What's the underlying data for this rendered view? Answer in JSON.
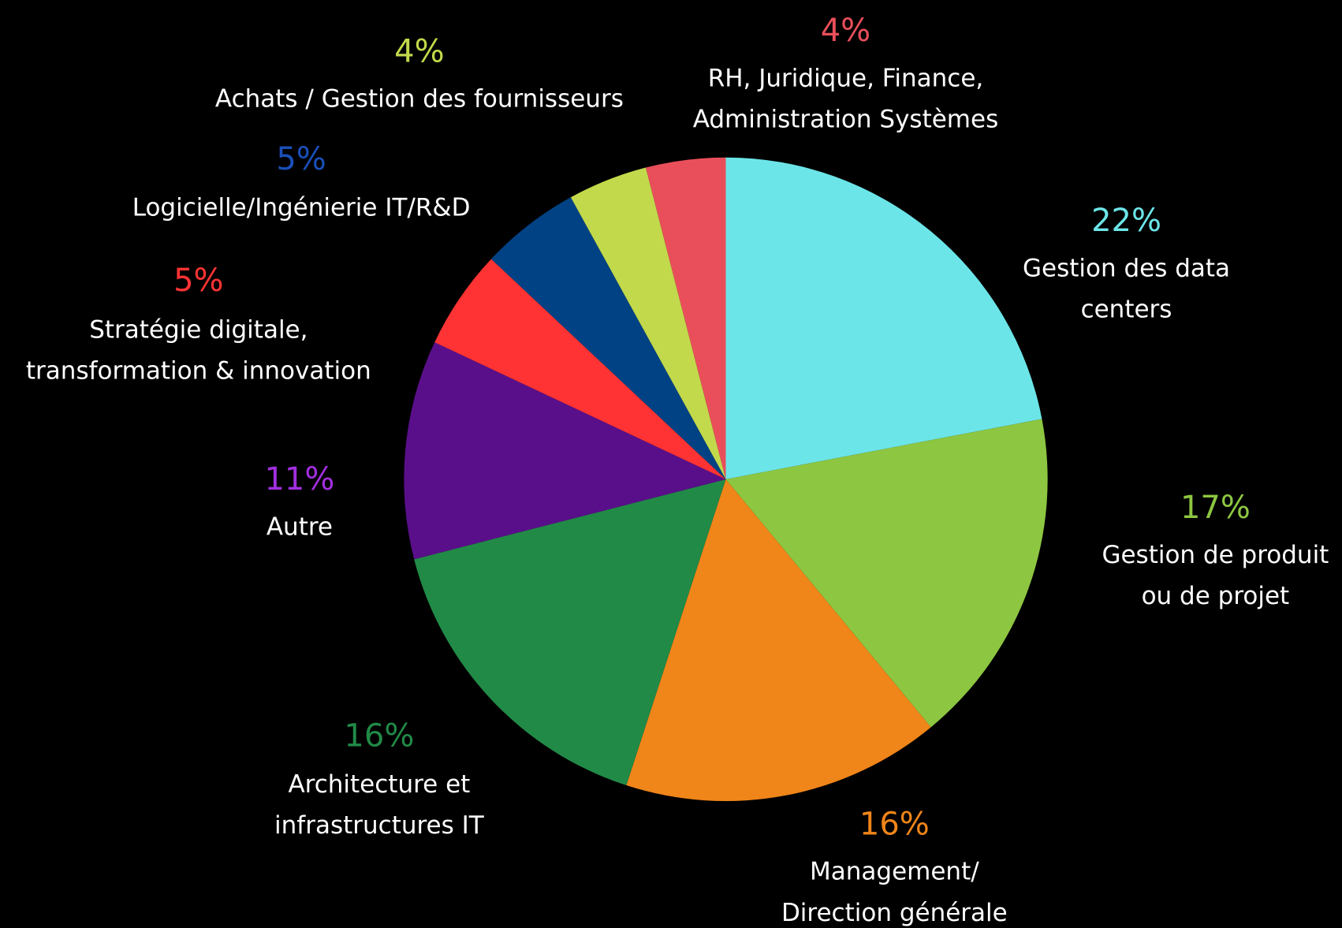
{
  "chart_data": {
    "type": "pie",
    "categories": [
      [
        "Gestion des data",
        "centers"
      ],
      [
        "Gestion de produit",
        "ou de projet"
      ],
      [
        "Management/",
        "Direction générale"
      ],
      [
        "Architecture et",
        "infrastructures IT"
      ],
      [
        "Autre"
      ],
      [
        "Stratégie digitale,",
        "transformation & innovation"
      ],
      [
        "Logicielle/Ingénierie IT/R&D"
      ],
      [
        "Achats / Gestion des fournisseurs"
      ],
      [
        "RH, Juridique, Finance,",
        "Administration Systèmes"
      ]
    ],
    "values": [
      22,
      17,
      16,
      16,
      11,
      5,
      5,
      4,
      4
    ],
    "value_labels": [
      "22%",
      "17%",
      "16%",
      "16%",
      "11%",
      "5%",
      "5%",
      "4%",
      "4%"
    ],
    "colors": [
      "#6ce5e8",
      "#8dc641",
      "#f08519",
      "#218a47",
      "#5a0f8a",
      "#ff3333",
      "#014284",
      "#c2d94b",
      "#e94f5a"
    ],
    "label_colors": [
      "#6ce5e8",
      "#8dc641",
      "#f08519",
      "#218a47",
      "#a22fe0",
      "#ff3333",
      "#1a4fb8",
      "#c2d94b",
      "#e94f5a"
    ]
  }
}
